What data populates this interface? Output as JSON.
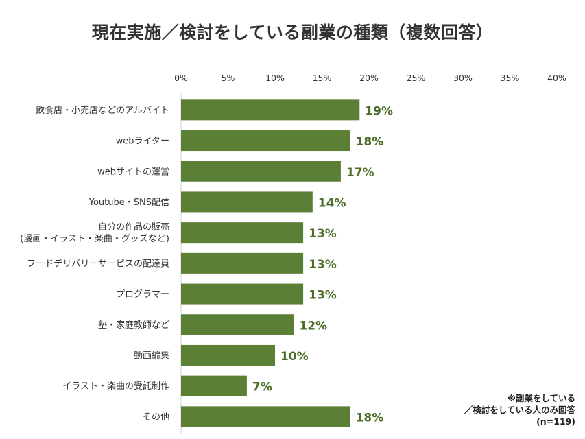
{
  "chart_data": {
    "type": "bar",
    "orientation": "horizontal",
    "title": "現在実施／検討をしている副業の種類（複数回答）",
    "categories": [
      [
        "飲食店・小売店などのアルバイト"
      ],
      [
        "webライター"
      ],
      [
        "webサイトの運営"
      ],
      [
        "Youtube・SNS配信"
      ],
      [
        "自分の作品の販売",
        "(漫画・イラスト・楽曲・グッズなど)"
      ],
      [
        "フードデリバリーサービスの配達員"
      ],
      [
        "プログラマー"
      ],
      [
        "塾・家庭教師など"
      ],
      [
        "動画編集"
      ],
      [
        "イラスト・楽曲の受託制作"
      ],
      [
        "その他"
      ]
    ],
    "values": [
      19,
      18,
      17,
      14,
      13,
      13,
      13,
      12,
      10,
      7,
      18
    ],
    "value_labels": [
      "19%",
      "18%",
      "17%",
      "14%",
      "13%",
      "13%",
      "13%",
      "12%",
      "10%",
      "7%",
      "18%"
    ],
    "xlim": [
      0,
      40
    ],
    "ticks": [
      0,
      5,
      10,
      15,
      20,
      25,
      30,
      35,
      40
    ],
    "tick_labels": [
      "0%",
      "5%",
      "10%",
      "15%",
      "20%",
      "25%",
      "30%",
      "35%",
      "40%"
    ],
    "xlabel": "",
    "ylabel": "",
    "grid": false,
    "colors": {
      "bar": "#5a7f35",
      "label": "#4a6b26",
      "axis": "#d0d0d0",
      "text": "#333333"
    }
  },
  "note": {
    "line1": "※副業をしている",
    "line2": "／検討をしている人のみ回答",
    "line3": "(n=119)"
  }
}
